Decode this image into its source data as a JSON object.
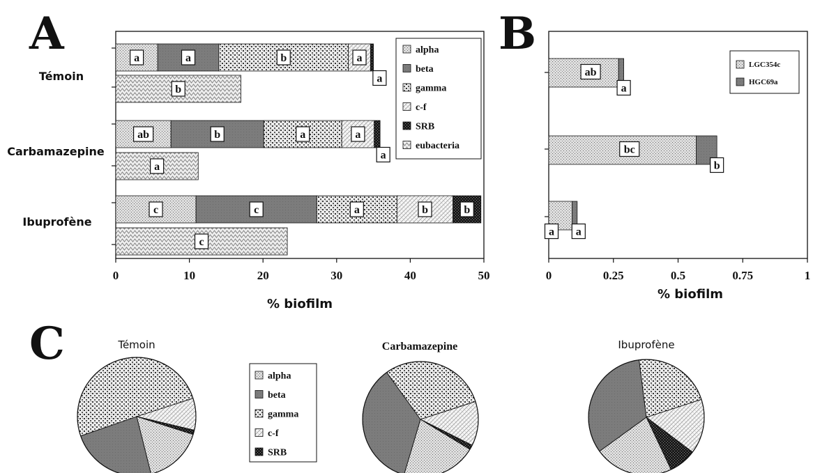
{
  "panels": {
    "a": "A",
    "b": "B",
    "c": "C"
  },
  "chart_data": [
    {
      "panel": "A",
      "type": "bar",
      "orientation": "horizontal",
      "stacked": true,
      "xlabel": "% biofilm",
      "xlim": [
        0,
        50
      ],
      "xticks": [
        "0",
        "10",
        "20",
        "30",
        "40",
        "50"
      ],
      "groups": [
        "Témoin",
        "Carbamazepine",
        "Ibuprofène"
      ],
      "legend": [
        "alpha",
        "beta",
        "gamma",
        "c-f",
        "SRB",
        "eubacteria"
      ],
      "legend_position": "top-right",
      "stacked_series": [
        {
          "name": "alpha",
          "values": [
            5.7,
            7.5,
            10.9
          ],
          "labels": [
            "a",
            "ab",
            "c"
          ]
        },
        {
          "name": "beta",
          "values": [
            8.3,
            12.6,
            16.4
          ],
          "labels": [
            "a",
            "b",
            "c"
          ]
        },
        {
          "name": "gamma",
          "values": [
            17.6,
            10.6,
            10.9
          ],
          "labels": [
            "b",
            "a",
            "a"
          ]
        },
        {
          "name": "c-f",
          "values": [
            3.0,
            4.4,
            7.6
          ],
          "labels": [
            "a",
            "a",
            "b"
          ]
        },
        {
          "name": "SRB",
          "values": [
            0.4,
            0.8,
            3.8
          ],
          "labels": [
            "a",
            "a",
            "b"
          ]
        }
      ],
      "eubacteria": {
        "name": "eubacteria",
        "values": [
          17.0,
          11.2,
          23.3
        ],
        "labels": [
          "b",
          "a",
          "c"
        ]
      }
    },
    {
      "panel": "B",
      "type": "bar",
      "orientation": "horizontal",
      "stacked": true,
      "xlabel": "% biofilm",
      "xlim": [
        0,
        1
      ],
      "xticks": [
        "0",
        "0.25",
        "0.5",
        "0.75",
        "1"
      ],
      "legend": [
        "LGC354c",
        "HGC69a"
      ],
      "legend_position": "top-right",
      "series": [
        {
          "name": "LGC354c",
          "values": [
            0.27,
            0.57,
            0.09
          ],
          "labels": [
            "ab",
            "bc",
            "a"
          ]
        },
        {
          "name": "HGC69a",
          "values": [
            0.02,
            0.08,
            0.02
          ],
          "labels": [
            "a",
            "b",
            "a"
          ]
        }
      ]
    },
    {
      "panel": "C",
      "type": "pie",
      "legend": [
        "alpha",
        "beta",
        "gamma",
        "c-f",
        "SRB"
      ],
      "pies": [
        {
          "title": "Témoin",
          "values": [
            16.2,
            23.6,
            50.3,
            8.7,
            1.2
          ]
        },
        {
          "title": "Carbamazepine",
          "values": [
            20.9,
            35.5,
            29.9,
            12.4,
            1.3
          ]
        },
        {
          "title": "Ibuprofène",
          "values": [
            22.0,
            33.0,
            22.0,
            15.3,
            7.7
          ]
        }
      ]
    }
  ]
}
